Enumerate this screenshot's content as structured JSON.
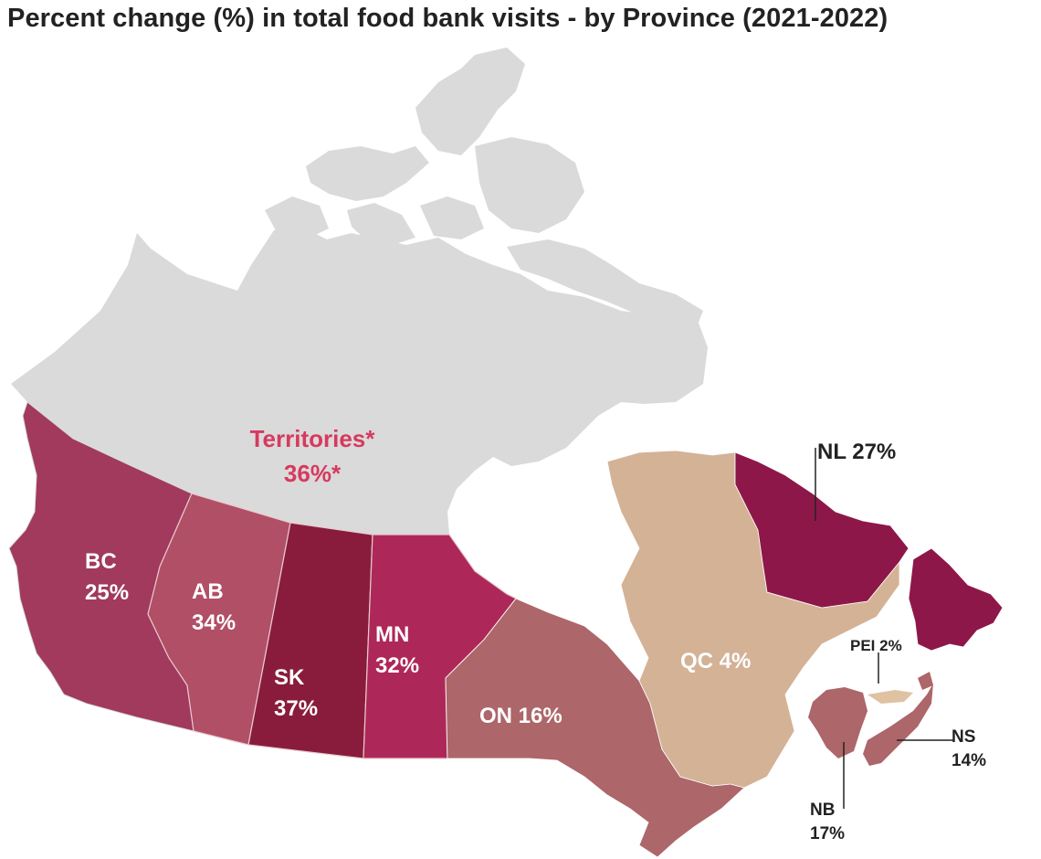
{
  "title": "Percent change (%) in total food bank visits - by Province (2021-2022)",
  "colors": {
    "territories": "#dadada",
    "territories_label": "#d63a5e",
    "BC": "#a13a5c",
    "AB": "#b14f67",
    "SK": "#891c3c",
    "MN": "#ad2858",
    "ON": "#ad6669",
    "QC": "#d4b296",
    "NL": "#8e1749",
    "NB": "#ad6669",
    "NS": "#ad6669",
    "PEI": "#dfc2a2"
  },
  "regions": {
    "territories": {
      "name": "Territories*",
      "value": "36%*",
      "pct": 36
    },
    "BC": {
      "name": "BC",
      "value": "25%",
      "pct": 25
    },
    "AB": {
      "name": "AB",
      "value": "34%",
      "pct": 34
    },
    "SK": {
      "name": "SK",
      "value": "37%",
      "pct": 37
    },
    "MN": {
      "name": "MN",
      "value": "32%",
      "pct": 32
    },
    "ON": {
      "label": "ON 16%",
      "pct": 16
    },
    "QC": {
      "label": "QC 4%",
      "pct": 4
    },
    "NL": {
      "label": "NL 27%",
      "pct": 27
    },
    "PEI": {
      "label": "PEI 2%",
      "pct": 2
    },
    "NS": {
      "name": "NS",
      "value": "14%",
      "pct": 14
    },
    "NB": {
      "name": "NB",
      "value": "17%",
      "pct": 17
    }
  }
}
